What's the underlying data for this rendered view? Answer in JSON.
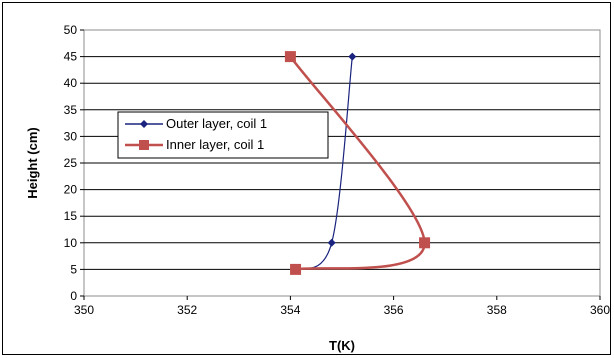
{
  "chart_data": {
    "type": "line",
    "xlabel": "T(K)",
    "ylabel": "Height (cm)",
    "xlim": [
      350,
      360
    ],
    "ylim": [
      0,
      50
    ],
    "xticks": [
      "350",
      "352",
      "354",
      "356",
      "358",
      "360"
    ],
    "yticks": [
      "0",
      "5",
      "10",
      "15",
      "20",
      "25",
      "30",
      "35",
      "40",
      "45",
      "50"
    ],
    "grid": "horizontal",
    "legend_position": "left",
    "series": [
      {
        "name": "Outer layer, coil 1",
        "color": "#1a237e",
        "marker": "diamond",
        "points": [
          {
            "x": 354.1,
            "y": 5
          },
          {
            "x": 354.8,
            "y": 10
          },
          {
            "x": 355.2,
            "y": 45
          }
        ]
      },
      {
        "name": "Inner layer, coil 1",
        "color": "#c0504d",
        "marker": "square",
        "points": [
          {
            "x": 354.1,
            "y": 5
          },
          {
            "x": 356.6,
            "y": 10
          },
          {
            "x": 354.0,
            "y": 45
          }
        ]
      }
    ]
  }
}
